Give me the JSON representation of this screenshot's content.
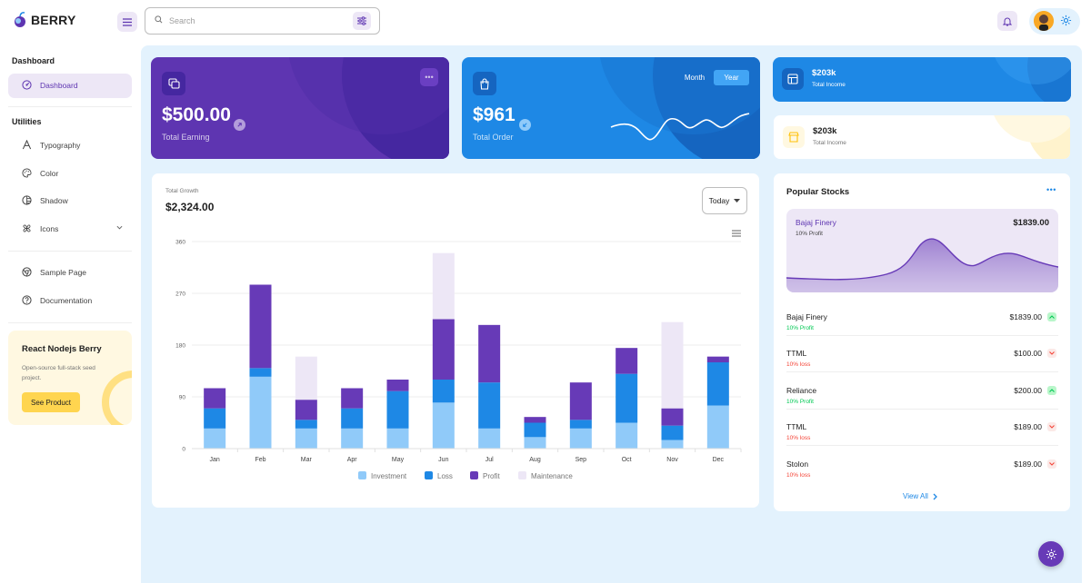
{
  "app": {
    "name": "BERRY"
  },
  "search": {
    "placeholder": "Search"
  },
  "sidebar": {
    "dashboard_caption": "Dashboard",
    "dashboard_item": "Dashboard",
    "utilities_caption": "Utilities",
    "items": [
      {
        "label": "Typography",
        "icon": "typography-icon"
      },
      {
        "label": "Color",
        "icon": "palette-icon"
      },
      {
        "label": "Shadow",
        "icon": "shadow-icon"
      },
      {
        "label": "Icons",
        "icon": "windmill-icon"
      }
    ],
    "other_items": [
      {
        "label": "Sample Page",
        "icon": "brand-chrome-icon"
      },
      {
        "label": "Documentation",
        "icon": "help-icon"
      }
    ],
    "promo": {
      "title": "React Nodejs Berry",
      "text": "Open-source full-stack seed project.",
      "button": "See Product"
    }
  },
  "cards": {
    "earning": {
      "value": "$500.00",
      "label": "Total Earning"
    },
    "order": {
      "value": "$961",
      "label": "Total Order",
      "toggle_month": "Month",
      "toggle_year": "Year"
    },
    "income_dark": {
      "value": "$203k",
      "label": "Total Income"
    },
    "income_light": {
      "value": "$203k",
      "label": "Total Income"
    }
  },
  "growth": {
    "label": "Total Growth",
    "total": "$2,324.00",
    "filter": "Today"
  },
  "chart_data": {
    "type": "bar",
    "stacked": true,
    "categories": [
      "Jan",
      "Feb",
      "Mar",
      "Apr",
      "May",
      "Jun",
      "Jul",
      "Aug",
      "Sep",
      "Oct",
      "Nov",
      "Dec"
    ],
    "series": [
      {
        "name": "Investment",
        "color": "#90caf9",
        "values": [
          35,
          125,
          35,
          35,
          35,
          80,
          35,
          20,
          35,
          45,
          15,
          75
        ]
      },
      {
        "name": "Loss",
        "color": "#1e88e5",
        "values": [
          35,
          15,
          15,
          35,
          65,
          40,
          80,
          25,
          15,
          85,
          25,
          75
        ]
      },
      {
        "name": "Profit",
        "color": "#673ab7",
        "values": [
          35,
          145,
          35,
          35,
          20,
          105,
          100,
          10,
          65,
          45,
          30,
          10
        ]
      },
      {
        "name": "Maintenance",
        "color": "#ede7f6",
        "values": [
          0,
          0,
          75,
          0,
          0,
          115,
          0,
          0,
          0,
          0,
          150,
          0
        ]
      }
    ],
    "y_ticks": [
      0,
      90,
      180,
      270,
      360
    ],
    "ylim": [
      0,
      360
    ],
    "grid": true,
    "legend": "bottom"
  },
  "stocks": {
    "title": "Popular Stocks",
    "feature": {
      "name": "Bajaj Finery",
      "profit": "10% Profit",
      "price": "$1839.00"
    },
    "rows": [
      {
        "name": "Bajaj Finery",
        "change": "10% Profit",
        "price": "$1839.00",
        "up": true
      },
      {
        "name": "TTML",
        "change": "10% loss",
        "price": "$100.00",
        "up": false
      },
      {
        "name": "Reliance",
        "change": "10% Profit",
        "price": "$200.00",
        "up": true
      },
      {
        "name": "TTML",
        "change": "10% loss",
        "price": "$189.00",
        "up": false
      },
      {
        "name": "Stolon",
        "change": "10% loss",
        "price": "$189.00",
        "up": false
      }
    ],
    "view_all": "View All"
  },
  "colors": {
    "primary": "#5e35b1",
    "secondary": "#1e88e5",
    "success": "#00c853",
    "error": "#f44336",
    "warning": "#ffc107"
  }
}
